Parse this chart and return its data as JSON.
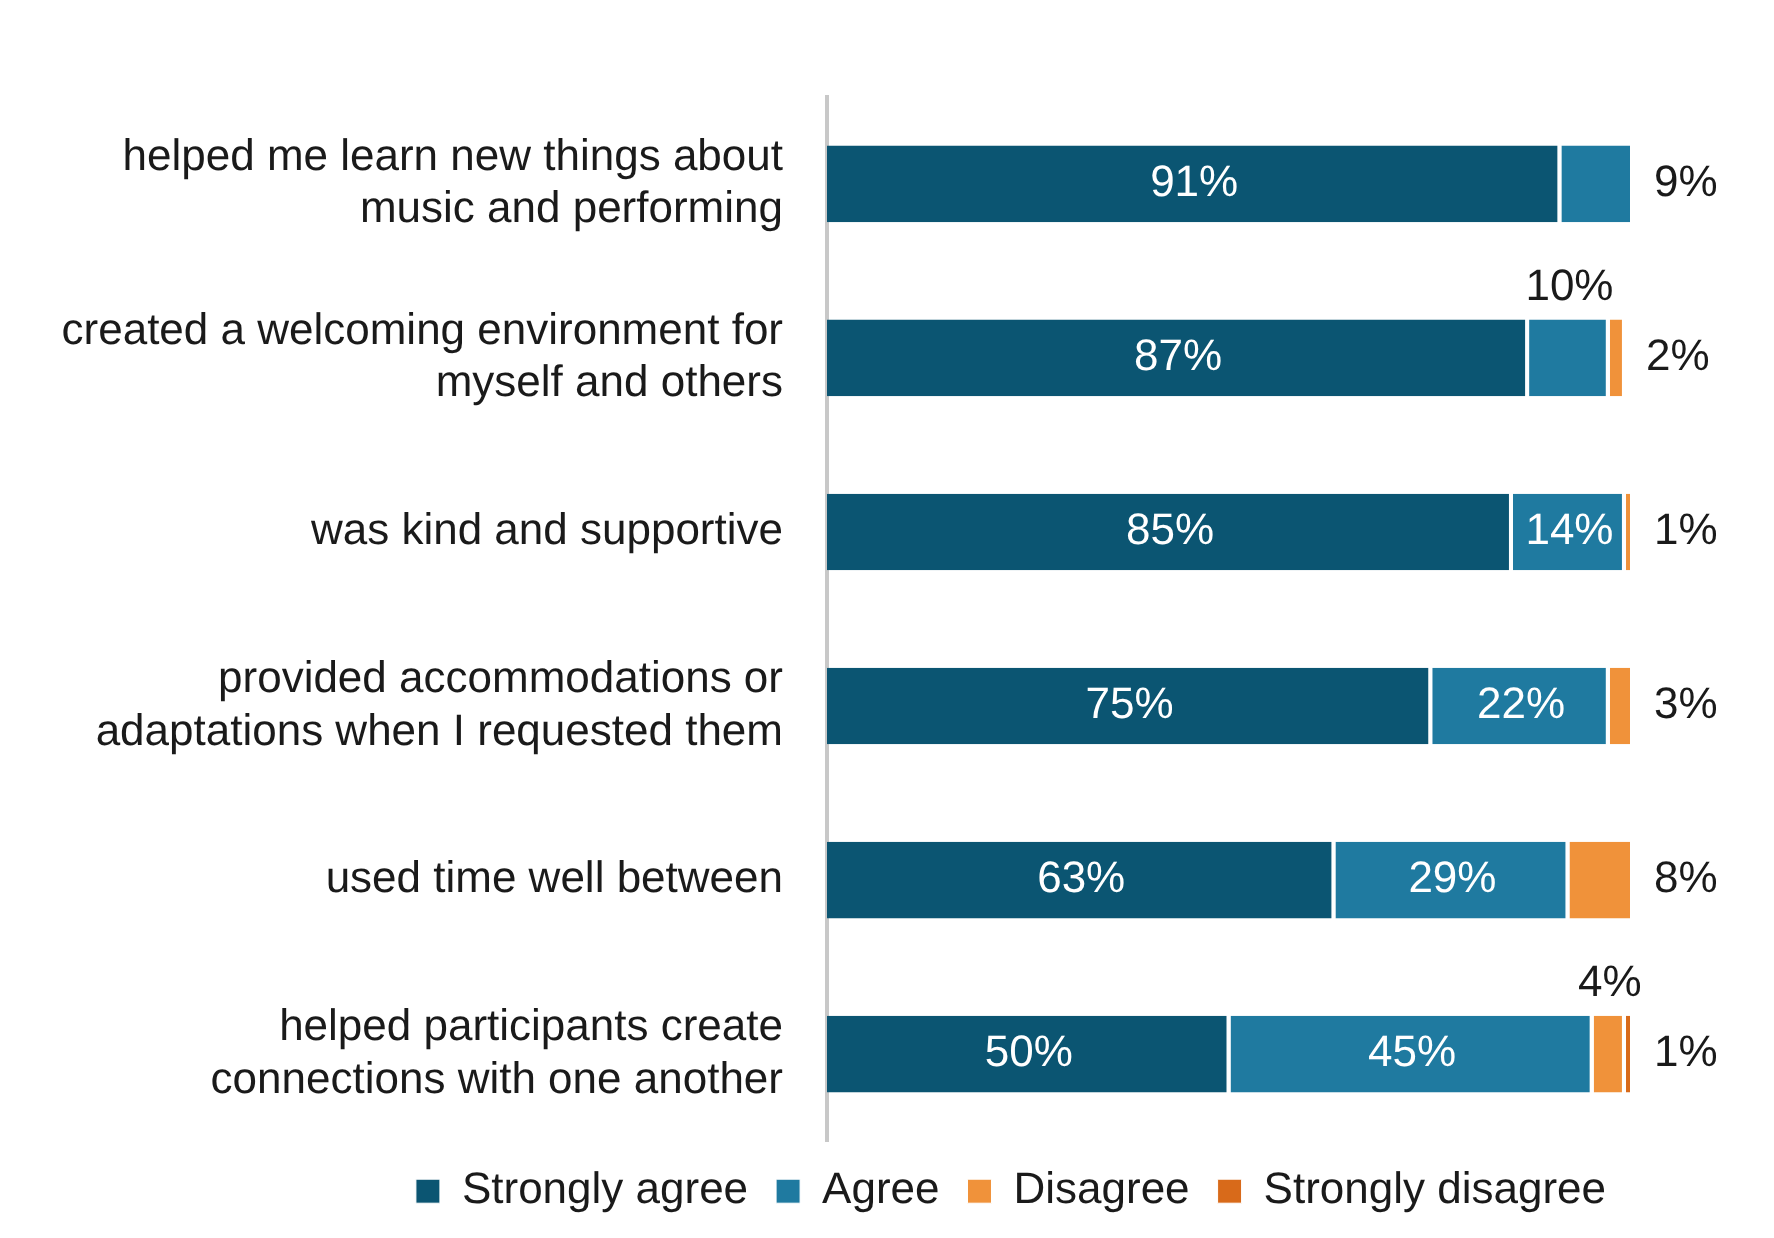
{
  "chart_data": {
    "type": "bar",
    "orientation": "horizontal",
    "stacked": true,
    "legend": "bottom",
    "categories": [
      "helped me learn new things about music and performing",
      "created a welcoming environment for myself and others",
      "was kind and supportive",
      "provided accommodations or adaptations when I requested them",
      "used time well between",
      "helped participants create connections with one another"
    ],
    "series": [
      {
        "name": "Strongly agree",
        "color": "#0b5572",
        "values": [
          91,
          87,
          85,
          75,
          63,
          50
        ],
        "value_labels": [
          "91%",
          "87%",
          "85%",
          "75%",
          "63%",
          "50%"
        ]
      },
      {
        "name": "Agree",
        "color": "#1f7aa0",
        "values": [
          9,
          10,
          14,
          22,
          29,
          45
        ],
        "value_labels": [
          "9%",
          "10%",
          "14%",
          "22%",
          "29%",
          "45%"
        ]
      },
      {
        "name": "Disagree",
        "color": "#f0923a",
        "values": [
          null,
          2,
          1,
          3,
          8,
          4
        ],
        "value_labels": [
          null,
          "2%",
          "1%",
          "3%",
          "8%",
          "4%"
        ]
      },
      {
        "name": "Strongly disagree",
        "color": "#d86a1a",
        "values": [
          null,
          null,
          null,
          null,
          null,
          1
        ],
        "value_labels": [
          null,
          null,
          null,
          null,
          null,
          "1%"
        ]
      }
    ]
  }
}
